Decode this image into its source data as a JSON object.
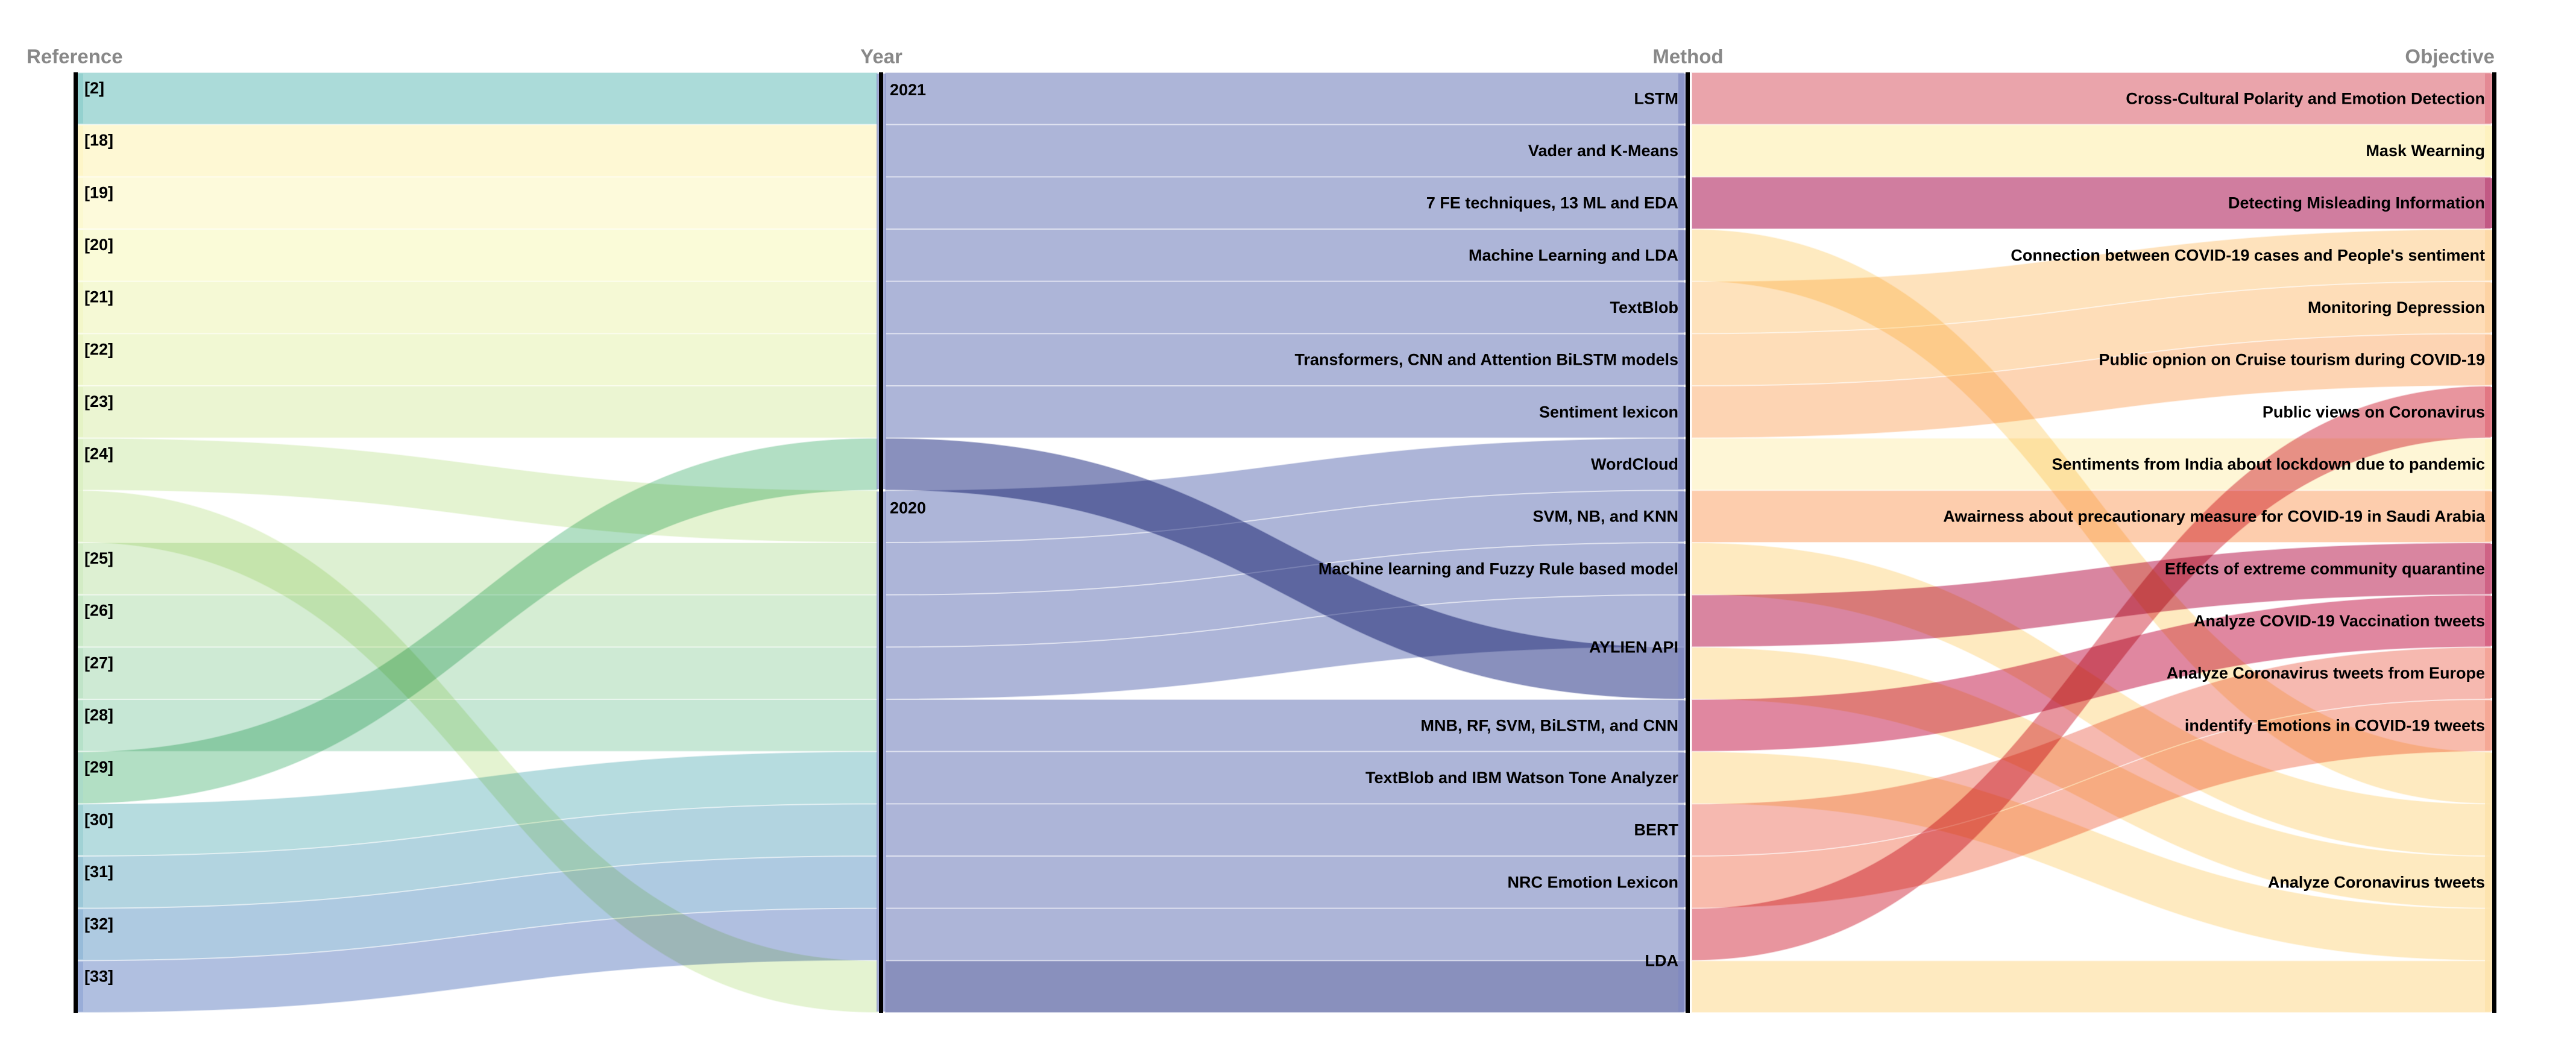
{
  "chart_data": {
    "type": "parallel-sets",
    "axes": [
      {
        "key": "reference",
        "title": "Reference"
      },
      {
        "key": "year",
        "title": "Year"
      },
      {
        "key": "method",
        "title": "Method"
      },
      {
        "key": "objective",
        "title": "Objective"
      }
    ],
    "records": [
      {
        "reference": "[2]",
        "year": "2021",
        "method": "LSTM",
        "objective": "Cross-Cultural Polarity and Emotion Detection"
      },
      {
        "reference": "[18]",
        "year": "2021",
        "method": "Vader and K-Means",
        "objective": "Mask Wearning"
      },
      {
        "reference": "[19]",
        "year": "2021",
        "method": "7 FE techniques, 13 ML and EDA",
        "objective": "Detecting Misleading Information"
      },
      {
        "reference": "[20]",
        "year": "2021",
        "method": "Machine Learning and LDA",
        "objective": "Analyze Coronavirus tweets"
      },
      {
        "reference": "[21]",
        "year": "2021",
        "method": "TextBlob",
        "objective": "Connection between COVID-19 cases and People's sentiment"
      },
      {
        "reference": "[22]",
        "year": "2021",
        "method": "Transformers, CNN and Attention BiLSTM models",
        "objective": "Monitoring Depression"
      },
      {
        "reference": "[23]",
        "year": "2021",
        "method": "Sentiment lexicon",
        "objective": "Public opnion on Cruise tourism during COVID-19"
      },
      {
        "reference": "[24]",
        "year": "2020",
        "method": "WordCloud",
        "objective": "Sentiments from India about lockdown due to pandemic"
      },
      {
        "reference": "[25]",
        "year": "2020",
        "method": "SVM, NB, and KNN",
        "objective": "Awairness about precautionary measure for COVID-19 in Saudi Arabia"
      },
      {
        "reference": "[26]",
        "year": "2020",
        "method": "Machine learning and Fuzzy Rule based model",
        "objective": "Analyze Coronavirus tweets"
      },
      {
        "reference": "[27]",
        "year": "2020",
        "method": "AYLIEN API",
        "objective": "Effects of extreme community quarantine"
      },
      {
        "reference": "[28]",
        "year": "2020",
        "method": "MNB, RF, SVM, BiLSTM, and CNN",
        "objective": "Analyze COVID-19 Vaccination tweets"
      },
      {
        "reference": "[29]",
        "year": "2021",
        "method": "AYLIEN API",
        "objective": "Analyze Coronavirus tweets"
      },
      {
        "reference": "[30]",
        "year": "2020",
        "method": "TextBlob and IBM Watson Tone Analyzer",
        "objective": "Analyze Coronavirus tweets"
      },
      {
        "reference": "[31]",
        "year": "2020",
        "method": "BERT",
        "objective": "Analyze Coronavirus tweets from Europe"
      },
      {
        "reference": "[32]",
        "year": "2020",
        "method": "NRC Emotion Lexicon",
        "objective": "indentify Emotions in COVID-19 tweets"
      },
      {
        "reference": "[33]",
        "year": "2020",
        "method": "LDA",
        "objective": "Public views on Coronavirus"
      },
      {
        "reference": "[24]",
        "year": "2020",
        "method": "LDA",
        "objective": "Analyze Coronavirus tweets"
      }
    ],
    "categories": {
      "reference": [
        "[2]",
        "[18]",
        "[19]",
        "[20]",
        "[21]",
        "[22]",
        "[23]",
        "[24]",
        "[25]",
        "[26]",
        "[27]",
        "[28]",
        "[29]",
        "[30]",
        "[31]",
        "[32]",
        "[33]"
      ],
      "year": [
        "2021",
        "2020"
      ],
      "method": [
        "LSTM",
        "Vader and K-Means",
        "7 FE techniques, 13 ML and EDA",
        "Machine Learning and LDA",
        "TextBlob",
        "Transformers, CNN and Attention BiLSTM models",
        "Sentiment lexicon",
        "WordCloud",
        "SVM, NB, and KNN",
        "Machine learning and Fuzzy Rule based model",
        "AYLIEN API",
        "MNB, RF, SVM, BiLSTM, and CNN",
        "TextBlob and IBM Watson Tone Analyzer",
        "BERT",
        "NRC Emotion Lexicon",
        "LDA"
      ],
      "objective": [
        "Cross-Cultural Polarity and Emotion Detection",
        "Mask Wearning",
        "Detecting Misleading Information",
        "Connection between COVID-19 cases and People's sentiment",
        "Monitoring Depression",
        "Public opnion on Cruise tourism during COVID-19",
        "Public views on Coronavirus",
        "Sentiments from India about lockdown due to pandemic",
        "Awairness about precautionary measure for COVID-19 in Saudi Arabia",
        "Effects of extreme community quarantine",
        "Analyze COVID-19 Vaccination tweets",
        "Analyze Coronavirus tweets from Europe",
        "indentify Emotions in COVID-19 tweets",
        "Analyze Coronavirus tweets"
      ]
    },
    "colors": {
      "reference": [
        "#8fcfcc",
        "#fef6c6",
        "#fcf8cf",
        "#f8f9cb",
        "#f2f7c7",
        "#ecf5c4",
        "#e4f2c3",
        "#dbefc2",
        "#d1ebc3",
        "#c7e7c4",
        "#bde3c5",
        "#b3dfc7",
        "#a9dbc9",
        "#9ed0d4",
        "#98c6d6",
        "#93b8d7",
        "#95a9d6"
      ],
      "year": "#7d87c2",
      "objective": [
        "#e3858f",
        "#fef1bd",
        "#c0527f",
        "#fdd8a6",
        "#fdd1a0",
        "#fcc699",
        "#e0727e",
        "#fef3c8",
        "#fcbc92",
        "#cc5c80",
        "#d65f80",
        "#f3a195",
        "#f5a490",
        "#fde3ab"
      ],
      "flow_year": "#8a95c8",
      "flow_year_dark": "#4a5499",
      "flow_green": "#7fca9c"
    }
  }
}
